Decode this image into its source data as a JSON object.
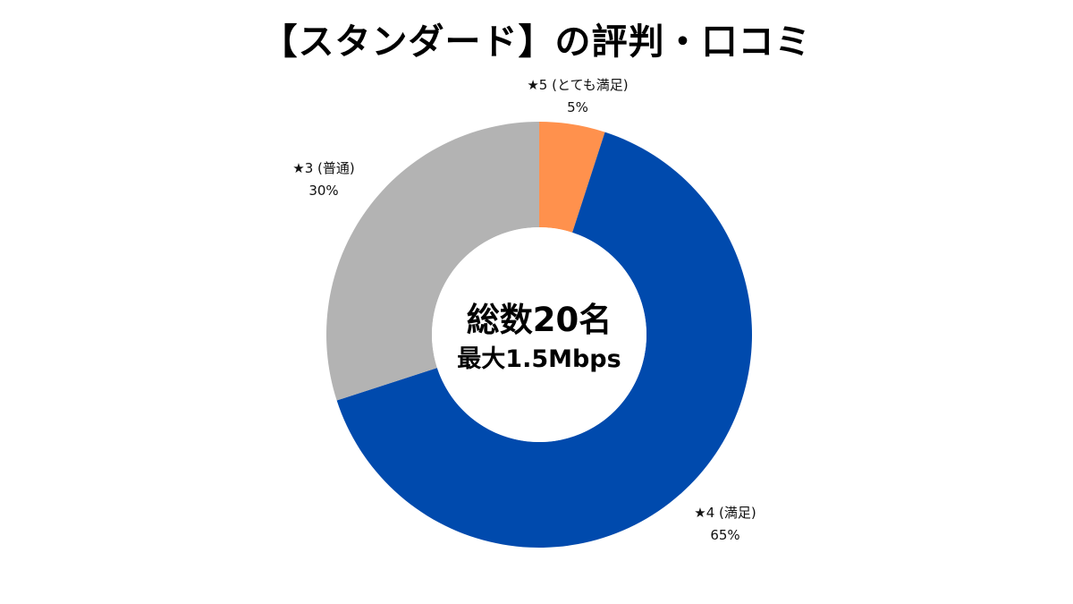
{
  "chart_data": {
    "type": "pie",
    "title": "【スタンダード】の評判・口コミ",
    "center_text": {
      "main": "総数20名",
      "sub": "最大1.5Mbps"
    },
    "slices": [
      {
        "label": "★5 (とても満足)",
        "value": 5,
        "value_label": "5%",
        "color": "#FF914D"
      },
      {
        "label": "★4 (満足)",
        "value": 65,
        "value_label": "65%",
        "color": "#004AAD"
      },
      {
        "label": "★3 (普通)",
        "value": 30,
        "value_label": "30%",
        "color": "#B3B3B3"
      }
    ],
    "donut": true,
    "legend": "none"
  }
}
